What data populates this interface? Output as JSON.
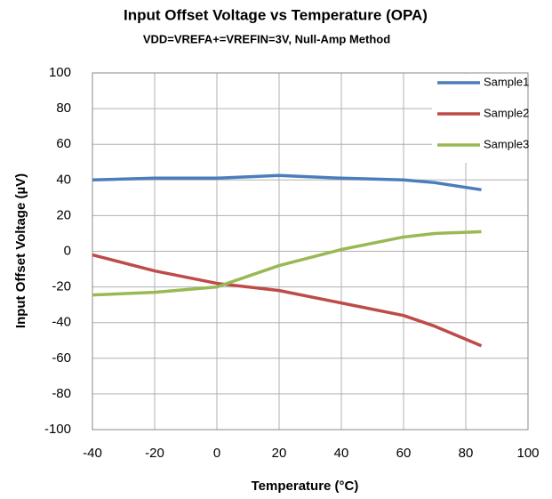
{
  "chart_data": {
    "type": "line",
    "title": "Input Offset Voltage vs Temperature (OPA)",
    "subtitle": "VDD=VREFA+=VREFIN=3V,   Null-Amp Method",
    "x_label": "Temperature (°C)",
    "y_label": "Input Offset Voltage (µV)",
    "x": [
      -40,
      -20,
      0,
      20,
      40,
      60,
      70,
      85
    ],
    "series": [
      {
        "name": "Sample1",
        "color": "#4a7ebb",
        "values": [
          40,
          41,
          41,
          42.5,
          41,
          40,
          38.5,
          34.5
        ]
      },
      {
        "name": "Sample2",
        "color": "#be4b48",
        "values": [
          -2,
          -11,
          -18,
          -22,
          -29,
          -36,
          -42,
          -53
        ]
      },
      {
        "name": "Sample3",
        "color": "#98b954",
        "values": [
          -24.5,
          -23,
          -20,
          -8,
          1,
          8,
          10,
          11
        ]
      }
    ],
    "xlim": [
      -40,
      100
    ],
    "xticks": [
      -40,
      -20,
      0,
      20,
      40,
      60,
      80,
      100
    ],
    "ylim": [
      -100,
      100
    ],
    "yticks": [
      -100,
      -80,
      -60,
      -40,
      -20,
      0,
      20,
      40,
      60,
      80,
      100
    ],
    "grid": true,
    "legend": "upper right"
  }
}
